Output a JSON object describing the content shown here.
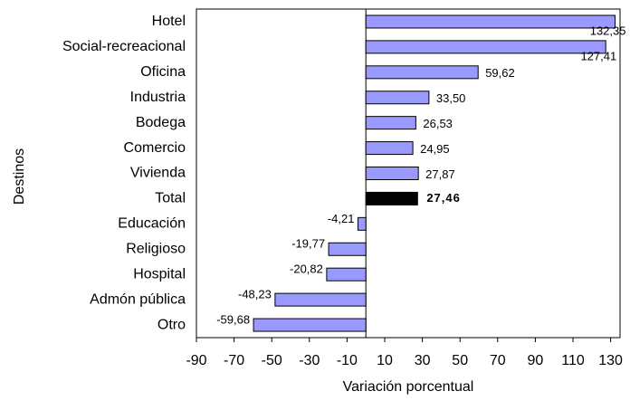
{
  "chart_data": {
    "type": "barh",
    "x_label": "Variación porcentual",
    "y_label": "Destinos",
    "categories": [
      "Hotel",
      "Social-recreacional",
      "Oficina",
      "Industria",
      "Bodega",
      "Comercio",
      "Vivienda",
      "Total",
      "Educación",
      "Religioso",
      "Hospital",
      "Admón pública",
      "Otro"
    ],
    "values": [
      132.35,
      127.41,
      59.62,
      33.5,
      26.53,
      24.95,
      27.87,
      27.46,
      -4.21,
      -19.77,
      -20.82,
      -48.23,
      -59.68
    ],
    "value_labels": [
      "132,35",
      "127,41",
      "59,62",
      "33,50",
      "26,53",
      "24,95",
      "27,87",
      "27,46",
      "-4,21",
      "-19,77",
      "-20,82",
      "-48,23",
      "-59,68"
    ],
    "colors": [
      "#9999ff",
      "#9999ff",
      "#9999ff",
      "#9999ff",
      "#9999ff",
      "#9999ff",
      "#9999ff",
      "#000000",
      "#9999ff",
      "#9999ff",
      "#9999ff",
      "#9999ff",
      "#9999ff"
    ],
    "xlim": [
      -90,
      135
    ],
    "xticks": [
      -90,
      -70,
      -50,
      -30,
      -10,
      10,
      30,
      50,
      70,
      90,
      110,
      130
    ]
  }
}
